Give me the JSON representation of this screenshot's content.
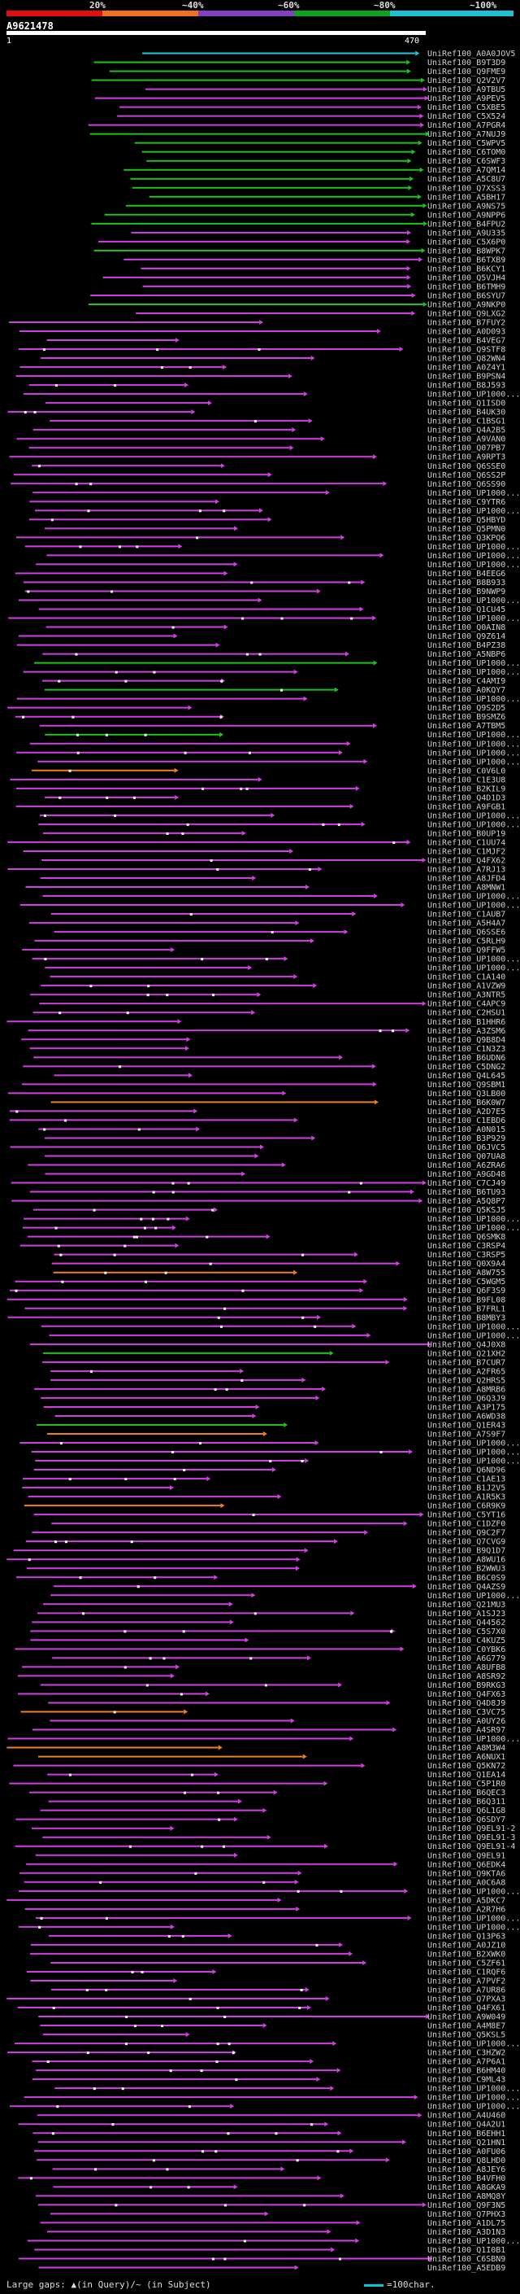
{
  "legend": {
    "bands": [
      {
        "label": "20%",
        "color": "#e01010"
      },
      {
        "label": "~40%",
        "color": "#ee7020"
      },
      {
        "label": "~60%",
        "color": "#8040c0"
      },
      {
        "label": "~80%",
        "color": "#10a020"
      },
      {
        "label": "~100%",
        "color": "#20c0d0"
      }
    ]
  },
  "query": {
    "title": "A9621478",
    "start": "1",
    "end": "470"
  },
  "colors": {
    "magenta": "#d040e0",
    "green": "#20c020",
    "orange": "#f08020",
    "cyan": "#20c8d8",
    "white": "#ffffff"
  },
  "hits": [
    "UniRef100_A0A0JOV5",
    "UniRef100_B9T3D9",
    "UniRef100_Q9FME9",
    "UniRef100_Q2V2V7",
    "UniRef100_A9TBU5",
    "UniRef100_A9PEV5",
    "UniRef100_C5XBE5",
    "UniRef100_C5X524",
    "UniRef100_A7PGR4",
    "UniRef100_A7NUJ9",
    "UniRef100_C5WPV5",
    "UniRef100_C6TOM0",
    "UniRef100_C6SWF3",
    "UniRef100_A7QM14",
    "UniRef100_A5C8U7",
    "UniRef100_Q7XSS3",
    "UniRef100_A5BH17",
    "UniRef100_A9NS75",
    "UniRef100_A9NPP6",
    "UniRef100_B4FPU2",
    "UniRef100_A9U335",
    "UniRef100_C5X6P0",
    "UniRef100_B8WPK7",
    "UniRef100_B6TXB9",
    "UniRef100_B6KCY1",
    "UniRef100_Q5VJH4",
    "UniRef100_B6TMH9",
    "UniRef100_B6SYU7",
    "UniRef100_A9NKP0",
    "UniRef100_Q9LXG2",
    "UniRef100_B7FUY2",
    "UniRef100_A0D093",
    "UniRef100_B4VEG7",
    "UniRef100_Q9STF8",
    "UniRef100_Q82WN4",
    "UniRef100_A0Z4Y1",
    "UniRef100_B9PSN4",
    "UniRef100_B8J593",
    "UniRef100_UP1000...",
    "UniRef100_Q1ISD0",
    "UniRef100_B4UK30",
    "UniRef100_C1BSG1",
    "UniRef100_Q4A2B5",
    "UniRef100_A9VAN0",
    "UniRef100_Q07PB7",
    "UniRef100_A9RPT3",
    "UniRef100_Q6SSE0",
    "UniRef100_Q6SS2P",
    "UniRef100_Q6SS90",
    "UniRef100_UP1000...",
    "UniRef100_C9YTR6",
    "UniRef100_UP1000...",
    "UniRef100_Q5HBYD",
    "UniRef100_Q5PMN0",
    "UniRef100_Q3KPQ6",
    "UniRef100_UP1000...",
    "UniRef100_UP1000...",
    "UniRef100_UP1000...",
    "UniRef100_B4EEG6",
    "UniRef100_B8B933",
    "UniRef100_B9NWP9",
    "UniRef100_UP1000...",
    "UniRef100_Q1CU45",
    "UniRef100_UP1000...",
    "UniRef100_Q0AIN8",
    "UniRef100_Q9Z614",
    "UniRef100_B4PZ38",
    "UniRef100_A5NBP6",
    "UniRef100_UP1000...",
    "UniRef100_UP1000...",
    "UniRef100_C4AMI9",
    "UniRef100_A0KQY7",
    "UniRef100_UP1000...",
    "UniRef100_Q9S2D5",
    "UniRef100_B9SMZ6",
    "UniRef100_A7TBM5",
    "UniRef100_UP1000...",
    "UniRef100_UP1000...",
    "UniRef100_UP1000...",
    "UniRef100_UP1000...",
    "UniRef100_C0V6L0",
    "UniRef100_C1E3U8",
    "UniRef100_B2KIL9",
    "UniRef100_Q4D1D3",
    "UniRef100_A9FGB1",
    "UniRef100_UP1000...",
    "UniRef100_UP1000...",
    "UniRef100_B0UP19",
    "UniRef100_C1UU74",
    "UniRef100_C1MJF2",
    "UniRef100_Q4FX62",
    "UniRef100_A7RJ13",
    "UniRef100_A8JFD4",
    "UniRef100_A8MNW1",
    "UniRef100_UP1000...",
    "UniRef100_UP1000...",
    "UniRef100_C1AUB7",
    "UniRef100_A5H4A7",
    "UniRef100_Q6SSE6",
    "UniRef100_C5RLH9",
    "UniRef100_Q9FFW5",
    "UniRef100_UP1000...",
    "UniRef100_UP1000...",
    "UniRef100_C1A140",
    "UniRef100_A1VZW9",
    "UniRef100_A3NTR5",
    "UniRef100_C4APC9",
    "UniRef100_C2HSU1",
    "UniRef100_B1HHR6",
    "UniRef100_A3ZSM6",
    "UniRef100_Q9B8D4",
    "UniRef100_C1N3Z3",
    "UniRef100_B6UDN6",
    "UniRef100_C5DNG2",
    "UniRef100_Q4L645",
    "UniRef100_Q9SBM1",
    "UniRef100_Q3LB00",
    "UniRef100_B6K0W7",
    "UniRef100_A2D7E5",
    "UniRef100_C1EBD6",
    "UniRef100_A0N015",
    "UniRef100_B3P929",
    "UniRef100_Q6JVC5",
    "UniRef100_Q07UA8",
    "UniRef100_A6ZRA6",
    "UniRef100_A9GD48",
    "UniRef100_C7CJ49",
    "UniRef100_B6TU93",
    "UniRef100_A5Q8P7",
    "UniRef100_Q5KSJ5",
    "UniRef100_UP1000...",
    "UniRef100_UP1000...",
    "UniRef100_Q6SMK8",
    "UniRef100_C3RSP4",
    "UniRef100_C3RSP5",
    "UniRef100_Q0X9A4",
    "UniRef100_A8W755",
    "UniRef100_C5WGM5",
    "UniRef100_Q6F3S9",
    "UniRef100_B9FL08",
    "UniRef100_B7FRL1",
    "UniRef100_B8MBY3",
    "UniRef100_UP1000...",
    "UniRef100_UP1000...",
    "UniRef100_Q4J0X8",
    "UniRef100_Q21XH2",
    "UniRef100_B7CUR7",
    "UniRef100_A2FR65",
    "UniRef100_Q2HRS5",
    "UniRef100_A8MRB6",
    "UniRef100_Q6Q3J9",
    "UniRef100_A3P175",
    "UniRef100_A6WD38",
    "UniRef100_Q1ER43",
    "UniRef100_A7S9F7",
    "UniRef100_UP1000...",
    "UniRef100_UP1000...",
    "UniRef100_UP1000...",
    "UniRef100_Q6ND96",
    "UniRef100_C1AE13",
    "UniRef100_B1J2V5",
    "UniRef100_A1R5K3",
    "UniRef100_C6R9K9",
    "UniRef100_C5YT16",
    "UniRef100_C1DZF0",
    "UniRef100_Q9C2F7",
    "UniRef100_Q7CVG9",
    "UniRef100_B9Q1D7",
    "UniRef100_A8WU16",
    "UniRef100_B2WWU3",
    "UniRef100_B6C0S9",
    "UniRef100_Q4AZS9",
    "UniRef100_UP1000...",
    "UniRef100_Q21MU3",
    "UniRef100_A1SJ23",
    "UniRef100_Q44562",
    "UniRef100_C5S7X0",
    "UniRef100_C4KUZ5",
    "UniRef100_C0YBK6",
    "UniRef100_A6G779",
    "UniRef100_A8UFB8",
    "UniRef100_A8SR92",
    "UniRef100_B9RKG3",
    "UniRef100_Q4FX63",
    "UniRef100_Q4D8J9",
    "UniRef100_C3VC75",
    "UniRef100_A0UY26",
    "UniRef100_A4SR97",
    "UniRef100_UP1000...",
    "UniRef100_A8M3W4",
    "UniRef100_A6NUX1",
    "UniRef100_Q5KN72",
    "UniRef100_Q1EA14",
    "UniRef100_C5P1R0",
    "UniRef100_B6QEC3",
    "UniRef100_B6Q311",
    "UniRef100_Q6L1G8",
    "UniRef100_Q6SDY7",
    "UniRef100_Q9EL91-2",
    "UniRef100_Q9EL91-3",
    "UniRef100_Q9EL91-4",
    "UniRef100_Q9EL91",
    "UniRef100_Q6EDK4",
    "UniRef100_Q9KTA6",
    "UniRef100_A0C6A8",
    "UniRef100_UP1000...",
    "UniRef100_A5DKC7",
    "UniRef100_A2R7H6",
    "UniRef100_UP1000...",
    "UniRef100_UP1000...",
    "UniRef100_Q13P63",
    "UniRef100_A0JZ10",
    "UniRef100_B2XWK0",
    "UniRef100_C5ZF61",
    "UniRef100_C1RQF6",
    "UniRef100_A7PVF2",
    "UniRef100_A7UR86",
    "UniRef100_Q7PXA3",
    "UniRef100_Q4FX61",
    "UniRef100_A9W049",
    "UniRef100_A4M8E7",
    "UniRef100_Q5KSL5",
    "UniRef100_UP1000...",
    "UniRef100_C3HZW2",
    "UniRef100_A7P6A1",
    "UniRef100_B6HM40",
    "UniRef100_C9ML43",
    "UniRef100_UP1000...",
    "UniRef100_UP1000...",
    "UniRef100_UP1000...",
    "UniRef100_A4U460",
    "UniRef100_Q4A2U1",
    "UniRef100_B6EHH1",
    "UniRef100_Q21HN1",
    "UniRef100_A0FU06",
    "UniRef100_Q8LHD0",
    "UniRef100_A8JEY6",
    "UniRef100_B4VFH0",
    "UniRef100_A8GKA9",
    "UniRef100_A8MQ8Y",
    "UniRef100_Q9F3N5",
    "UniRef100_Q7PHX3",
    "UniRef100_A1DL75",
    "UniRef100_A3D1N3",
    "UniRef100_UP1000...",
    "UniRef100_Q1I0B1",
    "UniRef100_C6SBN9",
    "UniRef100_A5EDB9"
  ],
  "footer": {
    "gaps": "Large gaps: ▲(in Query)/~ (in Subject)",
    "scale": "=100char."
  }
}
